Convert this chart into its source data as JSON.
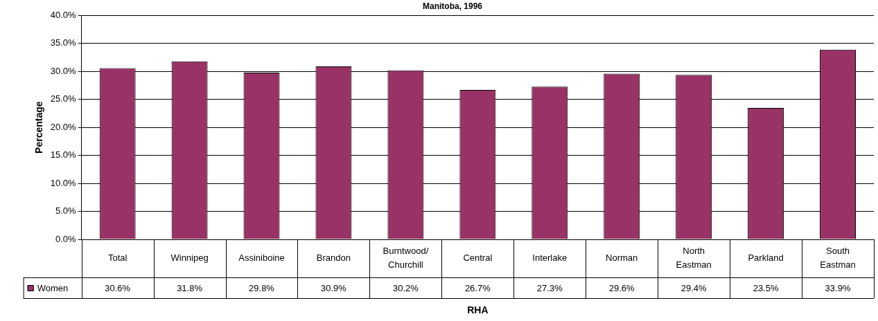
{
  "chart_data": {
    "type": "bar",
    "title": "Manitoba, 1996",
    "xlabel": "RHA",
    "ylabel": "Percentage",
    "categories": [
      "Total",
      "Winnipeg",
      "Assiniboine",
      "Brandon",
      "Burntwood/Churchill",
      "Central",
      "Interlake",
      "Norman",
      "North Eastman",
      "Parkland",
      "South Eastman"
    ],
    "series": [
      {
        "name": "Women",
        "color": "#993366",
        "values": [
          30.6,
          31.8,
          29.8,
          30.9,
          30.2,
          26.7,
          27.3,
          29.6,
          29.4,
          23.5,
          33.9
        ],
        "value_labels": [
          "30.6%",
          "31.8%",
          "29.8%",
          "30.9%",
          "30.2%",
          "26.7%",
          "27.3%",
          "29.6%",
          "29.4%",
          "23.5%",
          "33.9%"
        ]
      }
    ],
    "ylim": [
      0,
      40
    ],
    "yticks": [
      {
        "value": 0,
        "label": "0.0%"
      },
      {
        "value": 5,
        "label": "5.0%"
      },
      {
        "value": 10,
        "label": "10.0%"
      },
      {
        "value": 15,
        "label": "15.0%"
      },
      {
        "value": 20,
        "label": "20.0%"
      },
      {
        "value": 25,
        "label": "25.0%"
      },
      {
        "value": 30,
        "label": "30.0%"
      },
      {
        "value": 35,
        "label": "35.0%"
      },
      {
        "value": 40,
        "label": "40.0%"
      }
    ],
    "grid": "y",
    "legend": "bottom left"
  }
}
